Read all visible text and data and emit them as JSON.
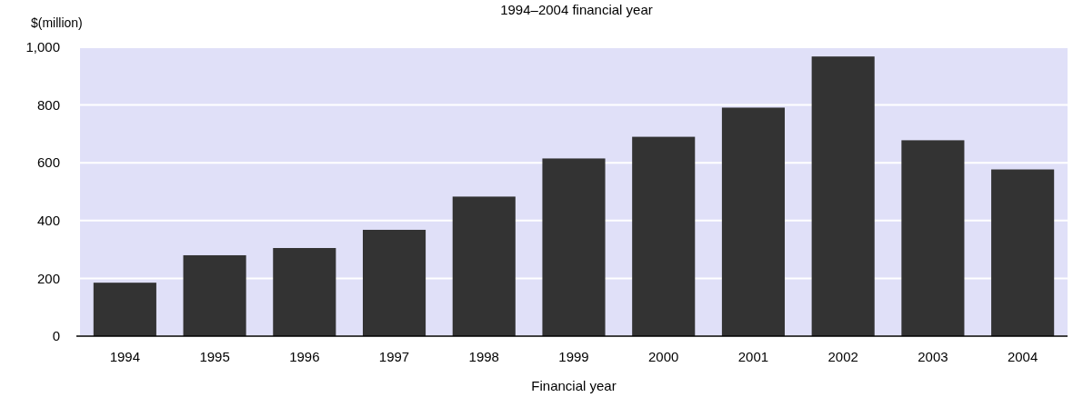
{
  "chart_data": {
    "type": "bar",
    "title": "1994–2004 financial year",
    "ylabel": "$(million)",
    "xlabel": "Financial year",
    "categories": [
      "1994",
      "1995",
      "1996",
      "1997",
      "1998",
      "1999",
      "2000",
      "2001",
      "2002",
      "2003",
      "2004"
    ],
    "values": [
      185,
      280,
      305,
      368,
      483,
      615,
      690,
      791,
      968,
      678,
      577
    ],
    "color": "#333333",
    "ylim": [
      0,
      1000
    ],
    "yticks": [
      0,
      200,
      400,
      600,
      800,
      {
        "value": 1000,
        "label": "1,000"
      }
    ],
    "grid": "y"
  }
}
